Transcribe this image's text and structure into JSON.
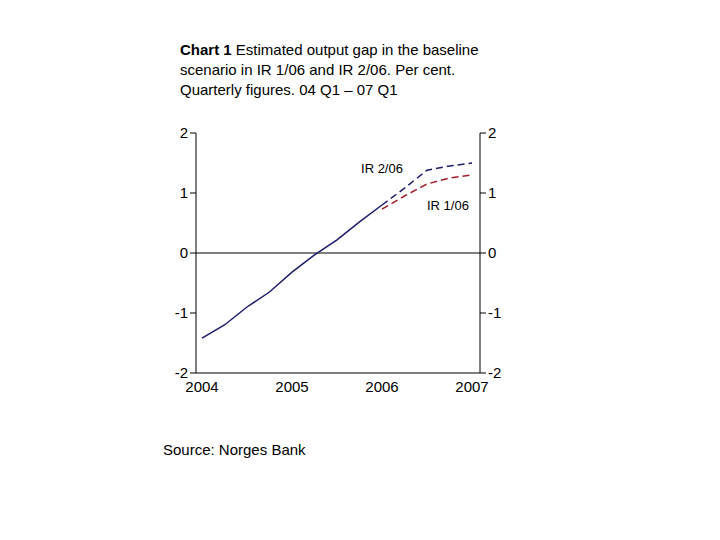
{
  "chart_data": {
    "type": "line",
    "title": "Chart 1",
    "subtitle": "Estimated output gap in the baseline scenario in IR 1/06 and IR 2/06. Per cent. Quarterly figures. 04 Q1 – 07 Q1",
    "annotations": [
      "Source: Norges Bank"
    ],
    "categories": [
      "2004",
      null,
      null,
      null,
      "2005",
      null,
      null,
      null,
      "2006",
      null,
      null,
      null,
      "2007"
    ],
    "series": [
      {
        "name": "IR 2/06",
        "color": "#1c1c6b",
        "line_style": "dashed",
        "values": [
          -1.42,
          -1.2,
          -0.9,
          -0.65,
          -0.32,
          -0.03,
          0.22,
          0.52,
          0.8,
          1.08,
          1.38,
          1.45,
          1.5
        ]
      },
      {
        "name": "IR 1/06",
        "color": "#a0202a",
        "line_style": "dashed",
        "values": [
          null,
          null,
          null,
          null,
          null,
          null,
          null,
          null,
          0.73,
          0.95,
          1.15,
          1.25,
          1.3
        ]
      }
    ],
    "ylim": [
      -2,
      2
    ],
    "yticks": [
      -2,
      -1,
      0,
      1,
      2
    ],
    "grid": false
  }
}
